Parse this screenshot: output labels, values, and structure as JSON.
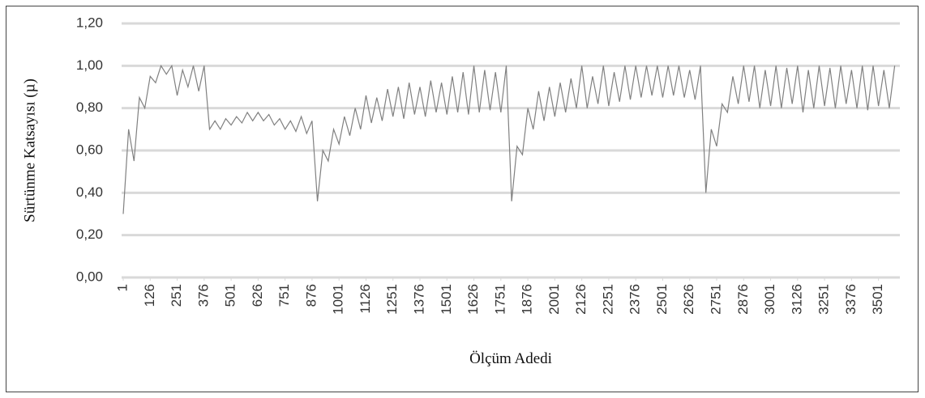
{
  "chart_data": {
    "type": "line",
    "x_label": "Ölçüm Adedi",
    "y_label": "Sürtünme Katsayısı (µ)",
    "x": [
      1,
      26,
      51,
      76,
      101,
      126,
      151,
      176,
      201,
      226,
      251,
      276,
      301,
      326,
      351,
      376,
      401,
      426,
      451,
      476,
      501,
      526,
      551,
      576,
      601,
      626,
      651,
      676,
      701,
      726,
      751,
      776,
      801,
      826,
      851,
      876,
      901,
      926,
      951,
      976,
      1001,
      1026,
      1051,
      1076,
      1101,
      1126,
      1151,
      1176,
      1201,
      1226,
      1251,
      1276,
      1301,
      1326,
      1351,
      1376,
      1401,
      1426,
      1451,
      1476,
      1501,
      1526,
      1551,
      1576,
      1601,
      1626,
      1651,
      1676,
      1701,
      1726,
      1751,
      1776,
      1801,
      1826,
      1851,
      1876,
      1901,
      1926,
      1951,
      1976,
      2001,
      2026,
      2051,
      2076,
      2101,
      2126,
      2151,
      2176,
      2201,
      2226,
      2251,
      2276,
      2301,
      2326,
      2351,
      2376,
      2401,
      2426,
      2451,
      2476,
      2501,
      2526,
      2551,
      2576,
      2601,
      2626,
      2651,
      2676,
      2701,
      2726,
      2751,
      2776,
      2801,
      2826,
      2851,
      2876,
      2901,
      2926,
      2951,
      2976,
      3001,
      3026,
      3051,
      3076,
      3101,
      3126,
      3151,
      3176,
      3201,
      3226,
      3251,
      3276,
      3301,
      3326,
      3351,
      3376,
      3401,
      3426,
      3451,
      3476,
      3501,
      3526,
      3551,
      3576
    ],
    "series": [
      {
        "color": "#808080",
        "values": [
          0.3,
          0.7,
          0.55,
          0.85,
          0.8,
          0.95,
          0.92,
          1.0,
          0.96,
          1.0,
          0.86,
          0.98,
          0.9,
          1.0,
          0.88,
          1.0,
          0.7,
          0.74,
          0.7,
          0.75,
          0.72,
          0.76,
          0.73,
          0.78,
          0.74,
          0.78,
          0.74,
          0.77,
          0.72,
          0.75,
          0.7,
          0.74,
          0.69,
          0.76,
          0.68,
          0.74,
          0.36,
          0.6,
          0.55,
          0.7,
          0.63,
          0.76,
          0.67,
          0.8,
          0.7,
          0.86,
          0.73,
          0.85,
          0.74,
          0.89,
          0.76,
          0.9,
          0.75,
          0.92,
          0.77,
          0.9,
          0.76,
          0.93,
          0.78,
          0.92,
          0.77,
          0.95,
          0.78,
          0.97,
          0.77,
          1.0,
          0.78,
          0.98,
          0.79,
          0.97,
          0.78,
          1.0,
          0.36,
          0.62,
          0.58,
          0.8,
          0.7,
          0.88,
          0.74,
          0.9,
          0.76,
          0.92,
          0.78,
          0.94,
          0.8,
          1.0,
          0.8,
          0.95,
          0.82,
          1.0,
          0.81,
          0.97,
          0.83,
          1.0,
          0.84,
          1.0,
          0.85,
          1.0,
          0.86,
          1.0,
          0.85,
          1.0,
          0.86,
          1.0,
          0.85,
          0.98,
          0.84,
          1.0,
          0.4,
          0.7,
          0.62,
          0.82,
          0.78,
          0.95,
          0.82,
          1.0,
          0.83,
          1.0,
          0.8,
          0.98,
          0.81,
          1.0,
          0.8,
          0.99,
          0.82,
          1.0,
          0.78,
          0.98,
          0.8,
          1.0,
          0.81,
          0.99,
          0.8,
          1.0,
          0.82,
          0.98,
          0.8,
          1.0,
          0.79,
          1.0,
          0.81,
          0.98,
          0.8,
          1.0
        ]
      }
    ],
    "xlim": [
      1,
      3600
    ],
    "xticks": [
      1,
      126,
      251,
      376,
      501,
      626,
      751,
      876,
      1001,
      1126,
      1251,
      1376,
      1501,
      1626,
      1751,
      1876,
      2001,
      2126,
      2251,
      2376,
      2501,
      2626,
      2751,
      2876,
      3001,
      3126,
      3251,
      3376,
      3501
    ],
    "ylim": [
      0,
      1.2
    ],
    "yticks": [
      {
        "value": 0,
        "label": "0,00"
      },
      {
        "value": 0.2,
        "label": "0,20"
      },
      {
        "value": 0.4,
        "label": "0,40"
      },
      {
        "value": 0.6,
        "label": "0,60"
      },
      {
        "value": 0.8,
        "label": "0,80"
      },
      {
        "value": 1.0,
        "label": "1,00"
      },
      {
        "value": 1.2,
        "label": "1,20"
      }
    ],
    "grid": true
  }
}
